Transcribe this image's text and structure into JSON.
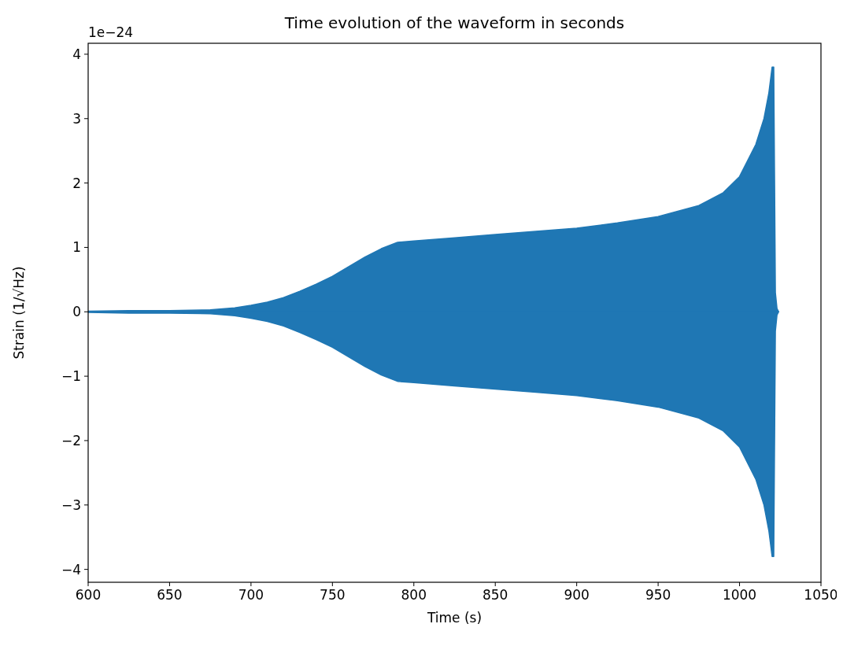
{
  "chart_data": {
    "type": "area",
    "title": "Time evolution of the waveform in seconds",
    "xlabel": "Time (s)",
    "ylabel": "Strain (1/√Hz)",
    "annotations": [
      "1e−24"
    ],
    "x": [
      600,
      625,
      650,
      675,
      690,
      700,
      710,
      720,
      730,
      740,
      750,
      760,
      770,
      780,
      790,
      800,
      825,
      850,
      875,
      900,
      925,
      950,
      975,
      990,
      1000,
      1010,
      1015,
      1018,
      1020,
      1021,
      1022,
      1023,
      1024
    ],
    "series": [
      {
        "color": "#1f77b4",
        "values": [
          0.01,
          0.02,
          0.02,
          0.03,
          0.06,
          0.1,
          0.15,
          0.22,
          0.32,
          0.43,
          0.55,
          0.7,
          0.85,
          0.98,
          1.08,
          1.1,
          1.15,
          1.2,
          1.25,
          1.3,
          1.38,
          1.48,
          1.65,
          1.85,
          2.1,
          2.6,
          3.0,
          3.4,
          3.8,
          3.8,
          0.3,
          0.05,
          0.0
        ]
      },
      {
        "color": "#1f77b4",
        "values": [
          -0.01,
          -0.02,
          -0.02,
          -0.03,
          -0.06,
          -0.1,
          -0.15,
          -0.22,
          -0.32,
          -0.43,
          -0.55,
          -0.7,
          -0.85,
          -0.98,
          -1.08,
          -1.1,
          -1.15,
          -1.2,
          -1.25,
          -1.3,
          -1.38,
          -1.48,
          -1.65,
          -1.85,
          -2.1,
          -2.6,
          -3.0,
          -3.4,
          -3.8,
          -3.8,
          -0.3,
          -0.05,
          0.0
        ]
      }
    ],
    "xlim": [
      600,
      1050
    ],
    "xticks": [
      600,
      650,
      700,
      750,
      800,
      850,
      900,
      950,
      1000,
      1050
    ],
    "ylim": [
      -4.2,
      4.17
    ],
    "yticks": [
      {
        "value": -4,
        "label": "−4"
      },
      {
        "value": -3,
        "label": "−3"
      },
      {
        "value": -2,
        "label": "−2"
      },
      {
        "value": -1,
        "label": "−1"
      },
      0,
      1,
      2,
      3,
      4
    ],
    "grid": false
  }
}
